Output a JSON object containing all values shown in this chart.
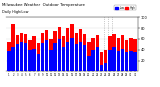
{
  "title": "Milwaukee Weather  Outdoor Temperature",
  "subtitle": "Daily High/Low",
  "background_color": "#ffffff",
  "high_color": "#ff0000",
  "low_color": "#0000ff",
  "grid_color": "#dddddd",
  "highs": [
    55,
    88,
    68,
    72,
    70,
    58,
    65,
    52,
    72,
    76,
    60,
    75,
    82,
    65,
    80,
    88,
    72,
    78,
    70,
    55,
    62,
    68,
    35,
    40,
    65,
    70,
    62,
    68,
    58,
    62,
    60
  ],
  "lows": [
    38,
    45,
    50,
    55,
    52,
    40,
    42,
    32,
    52,
    58,
    40,
    52,
    60,
    45,
    55,
    62,
    50,
    55,
    48,
    28,
    40,
    45,
    12,
    15,
    40,
    45,
    38,
    42,
    35,
    38,
    36
  ],
  "ylim": [
    0,
    100
  ],
  "yticks": [
    20,
    40,
    60,
    80,
    100
  ],
  "dashed_line_x": [
    22.5,
    23.5,
    24.5
  ],
  "n_days": 31
}
